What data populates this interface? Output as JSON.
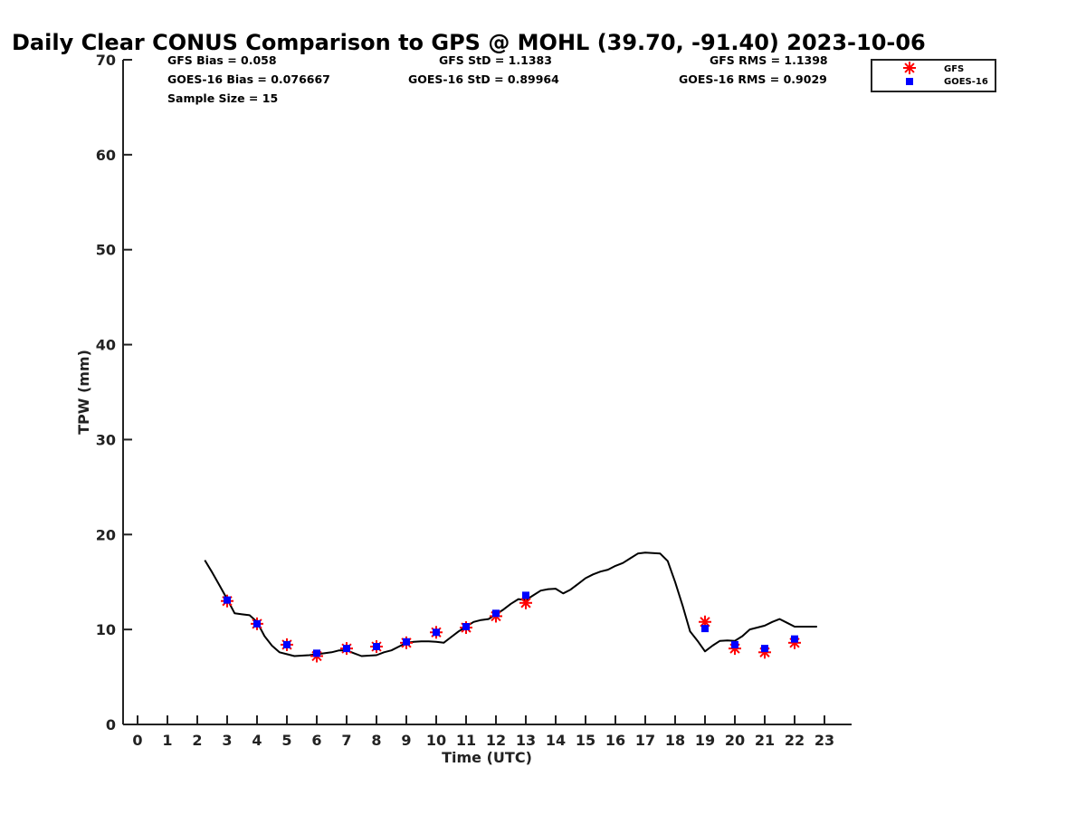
{
  "chart_data": {
    "type": "line",
    "title": "Daily Clear CONUS Comparison to GPS @ MOHL (39.70, -91.40) 2023-10-06",
    "xlabel": "Time (UTC)",
    "ylabel": "TPW (mm)",
    "xlim": [
      -0.5,
      23.8
    ],
    "ylim": [
      0,
      70
    ],
    "xticks": [
      "0",
      "1",
      "2",
      "3",
      "4",
      "5",
      "6",
      "7",
      "8",
      "9",
      "10",
      "11",
      "12",
      "13",
      "14",
      "15",
      "16",
      "17",
      "18",
      "19",
      "20",
      "21",
      "22",
      "23"
    ],
    "yticks": [
      "0",
      "10",
      "20",
      "30",
      "40",
      "50",
      "60",
      "70"
    ],
    "grid": false,
    "legend_position": "top-right",
    "stats": {
      "gfs_bias": "GFS Bias = 0.058",
      "goes_bias": "GOES-16 Bias = 0.076667",
      "sample_size": "Sample Size = 15",
      "gfs_std": "GFS StD = 1.1383",
      "goes_std": "GOES-16 StD = 0.89964",
      "gfs_rms": "GFS RMS = 1.1398",
      "goes_rms": "GOES-16 RMS = 0.9029"
    },
    "gps_line": {
      "color": "#000000",
      "x": [
        2.25,
        2.5,
        2.75,
        3.0,
        3.25,
        3.5,
        3.75,
        4.0,
        4.25,
        4.5,
        4.75,
        5.0,
        5.25,
        5.5,
        5.75,
        6.0,
        6.25,
        6.5,
        6.75,
        7.0,
        7.25,
        7.5,
        7.75,
        8.0,
        8.25,
        8.5,
        8.75,
        9.0,
        9.25,
        9.5,
        9.75,
        10.0,
        10.25,
        10.5,
        10.75,
        11.0,
        11.25,
        11.5,
        11.75,
        12.0,
        12.25,
        12.5,
        12.75,
        13.0,
        13.25,
        13.5,
        13.75,
        14.0,
        14.25,
        14.5,
        14.75,
        15.0,
        15.25,
        15.5,
        15.75,
        16.0,
        16.25,
        16.5,
        16.75,
        17.0,
        17.25,
        17.5,
        17.75,
        18.0,
        18.25,
        18.5,
        18.75,
        19.0,
        19.25,
        19.5,
        19.75,
        20.0,
        20.25,
        20.5,
        20.75,
        21.0,
        21.25,
        21.5,
        21.75,
        22.0,
        22.25,
        22.5,
        22.75
      ],
      "y": [
        17.3,
        16.0,
        14.6,
        13.2,
        11.7,
        11.6,
        11.5,
        10.8,
        9.3,
        8.3,
        7.6,
        7.4,
        7.2,
        7.25,
        7.3,
        7.4,
        7.5,
        7.6,
        7.8,
        7.8,
        7.5,
        7.2,
        7.25,
        7.3,
        7.6,
        7.8,
        8.2,
        8.6,
        8.7,
        8.75,
        8.75,
        8.7,
        8.6,
        9.2,
        9.8,
        10.3,
        10.8,
        11.0,
        11.1,
        11.6,
        12.1,
        12.7,
        13.2,
        13.1,
        13.6,
        14.1,
        14.25,
        14.3,
        13.8,
        14.2,
        14.8,
        15.4,
        15.8,
        16.1,
        16.3,
        16.7,
        17.0,
        17.5,
        18.0,
        18.1,
        18.05,
        18.0,
        17.2,
        15.0,
        12.5,
        9.8,
        8.8,
        7.7,
        8.3,
        8.8,
        8.85,
        8.8,
        9.3,
        10.0,
        10.2,
        10.4,
        10.8,
        11.1,
        10.7,
        10.3,
        10.3,
        10.3,
        10.3
      ]
    },
    "series": [
      {
        "name": "GFS",
        "color": "#ff0000",
        "marker": "asterisk",
        "x": [
          3,
          4,
          5,
          6,
          7,
          8,
          9,
          10,
          11,
          12,
          13,
          19,
          20,
          21,
          22
        ],
        "y": [
          13.0,
          10.6,
          8.4,
          7.2,
          8.0,
          8.2,
          8.6,
          9.7,
          10.2,
          11.4,
          12.8,
          10.8,
          8.0,
          7.6,
          8.6
        ]
      },
      {
        "name": "GOES-16",
        "color": "#0000ff",
        "marker": "square",
        "x": [
          3,
          4,
          5,
          6,
          7,
          8,
          9,
          10,
          11,
          12,
          13,
          19,
          20,
          21,
          22
        ],
        "y": [
          13.1,
          10.6,
          8.4,
          7.5,
          8.0,
          8.2,
          8.7,
          9.7,
          10.3,
          11.7,
          13.6,
          10.1,
          8.4,
          8.0,
          9.0
        ]
      }
    ]
  }
}
